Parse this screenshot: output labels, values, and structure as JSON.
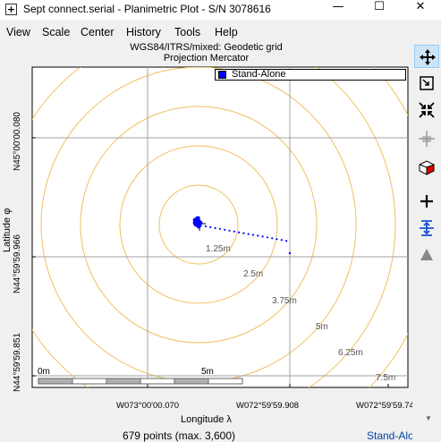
{
  "window": {
    "title": "Sept connect.serial - Planimetric Plot - S/N 3078616",
    "minimize": "—",
    "maximize": "☐",
    "close": "✕"
  },
  "menu": [
    "View",
    "Scale",
    "Center",
    "History",
    "Tools",
    "Help"
  ],
  "plot": {
    "title": "WGS84/ITRS/mixed: Geodetic grid",
    "subtitle": "Projection Mercator",
    "legend": "Stand-Alone",
    "y_axis_label": "Latitude φ",
    "y_ticks": [
      "N45°00'00.080",
      "N44°59'59.966",
      "N44°59'59.851"
    ],
    "x_axis_label": "Longitude λ",
    "x_ticks": [
      "W073°00'00.070",
      "W072°59'59.908",
      "W072°59'59.74"
    ],
    "rings": [
      "1.25m",
      "2.5m",
      "3.75m",
      "5m",
      "6.25m",
      "7.5m"
    ],
    "scale_start": "0m",
    "scale_end": "5m",
    "colors": {
      "ring": "#f0c060",
      "grid": "#a0a0a0",
      "points": "#0000ff"
    }
  },
  "chart_data": {
    "type": "scatter",
    "series": [
      {
        "name": "Stand-Alone",
        "points": []
      }
    ]
  },
  "status": {
    "points": "679 points (max. 3,600)",
    "mode": "Stand-Alone"
  },
  "toolbar": [
    "move-icon",
    "zoom-box-icon",
    "shrink-icon",
    "center-icon",
    "cube-icon",
    "zoom-in-icon",
    "fit-vertical-icon",
    "triangle-icon"
  ]
}
